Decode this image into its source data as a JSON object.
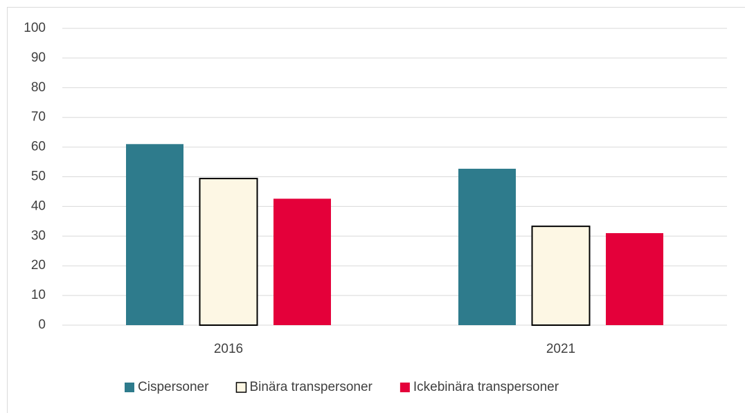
{
  "chart_data": {
    "type": "bar",
    "categories": [
      "2016",
      "2021"
    ],
    "series": [
      {
        "name": "Cispersoner",
        "color": "#2e7b8c",
        "values": [
          61,
          52.7
        ]
      },
      {
        "name": "Binära transpersoner",
        "color": "#fdf7e4",
        "edgecolor": "#000000",
        "values": [
          49.4,
          33.3
        ]
      },
      {
        "name": "Ickebinära transpersoner",
        "color": "#e4003a",
        "values": [
          42.6,
          31
        ]
      }
    ],
    "ylim": [
      0,
      100
    ],
    "yticks": [
      0,
      10,
      20,
      30,
      40,
      50,
      60,
      70,
      80,
      90,
      100
    ],
    "grid": true,
    "legend": "bottom"
  }
}
